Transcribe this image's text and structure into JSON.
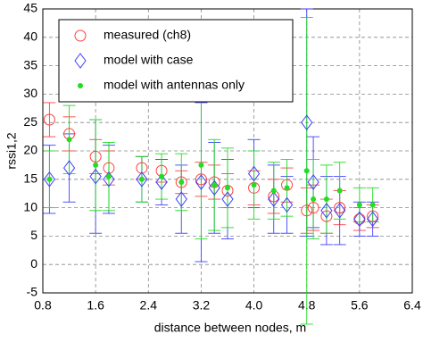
{
  "chart_data": {
    "type": "errorbar",
    "xlabel": "distance between nodes, m",
    "ylabel": "rssi1,2",
    "x": [
      0.9,
      1.2,
      1.6,
      1.8,
      2.3,
      2.6,
      2.9,
      3.2,
      3.4,
      3.6,
      4.0,
      4.3,
      4.5,
      4.8,
      4.9,
      5.1,
      5.3,
      5.6,
      5.8
    ],
    "series": [
      {
        "name": "measured (ch8)",
        "color": "#ff4040",
        "marker": "circle",
        "values": [
          25.5,
          23,
          19,
          17,
          17,
          16.5,
          14.5,
          15,
          14.5,
          13,
          13.5,
          12,
          14,
          9.5,
          10,
          8.5,
          10,
          8,
          8.5
        ],
        "errors": [
          3,
          3,
          3,
          3,
          2,
          2,
          2,
          3,
          3,
          3,
          3,
          3,
          3,
          4,
          4,
          3,
          3,
          2,
          2
        ]
      },
      {
        "name": "model with case",
        "color": "#4040ff",
        "marker": "diamond",
        "values": [
          15,
          17,
          15.5,
          15,
          15,
          14.5,
          11.5,
          14.5,
          13.5,
          11.5,
          16,
          11.5,
          10.5,
          25,
          14.5,
          9.5,
          9.5,
          8,
          8
        ],
        "errors": [
          6,
          6,
          10,
          6,
          4,
          4,
          6,
          14,
          8,
          7,
          6,
          6,
          5,
          20,
          8,
          6,
          6,
          3,
          3
        ]
      },
      {
        "name": "model with antennas only",
        "color": "#22dd22",
        "marker": "dot",
        "values": [
          15,
          22,
          17.5,
          15.5,
          15,
          15.5,
          14.5,
          17.5,
          14,
          13.5,
          14,
          13,
          13.5,
          16.5,
          11.5,
          11.5,
          13,
          10.5,
          10.5
        ],
        "errors": [
          5,
          6,
          8,
          6,
          4,
          4,
          5,
          13,
          8,
          7,
          6,
          5,
          5,
          27,
          7,
          6,
          5,
          3,
          3
        ]
      }
    ],
    "xlim": [
      0.8,
      6.4
    ],
    "xticks": [
      0.8,
      1.6,
      2.4,
      3.2,
      {
        "value": 4,
        "label": "4.0"
      },
      4.8,
      5.6,
      6.4
    ],
    "ylim": [
      -5,
      45
    ],
    "yticks": [
      -5,
      0,
      5,
      10,
      15,
      20,
      25,
      30,
      35,
      40,
      45
    ],
    "grid": true,
    "legend": "upper left"
  }
}
